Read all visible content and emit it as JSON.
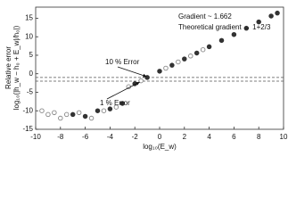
{
  "chart_data": {
    "type": "scatter",
    "x_label": "log₁₀(E_w)",
    "y_label": "Relative error",
    "y_label_2": "log₁₀(|h_w − h₀ + E_w|/h₀|)",
    "annotations": [
      "Gradient ~ 1.662",
      "Theoretical gradient → 1+2/3",
      "10 % Error",
      "1 % Error"
    ],
    "reference_lines": [
      -1,
      -2
    ],
    "xlim": [
      -10,
      10
    ],
    "xticks": [
      -10,
      -8,
      -6,
      -4,
      -2,
      0,
      2,
      4,
      6,
      8,
      10
    ],
    "ylim": [
      -15,
      18
    ],
    "yticks": [
      -15,
      -10,
      -5,
      0,
      5,
      10,
      15
    ],
    "series": [
      {
        "color": "#333333",
        "filled": true,
        "x": [
          -7,
          -6,
          -5,
          -4,
          -3,
          -2,
          -1,
          0,
          1,
          2,
          3,
          4,
          5,
          6,
          7,
          8,
          9,
          9.5
        ],
        "values": [
          -11,
          -11.5,
          -10,
          -9.5,
          -8,
          -2.7,
          -1.0,
          0.7,
          2.3,
          4.0,
          5.6,
          7.3,
          9.0,
          10.6,
          12.3,
          14.0,
          15.6,
          16.4
        ]
      },
      {
        "color": "#888888",
        "filled": false,
        "x": [
          -9.5,
          -9,
          -8.5,
          -8,
          -7.5,
          -6.5,
          -5.5,
          -4.5,
          -3.5,
          -2.5,
          -1.5,
          0.5,
          1.5,
          2.5,
          3.5
        ],
        "values": [
          -10,
          -11,
          -10.5,
          -12,
          -11,
          -10.5,
          -12,
          -10,
          -9,
          -3.5,
          -1.9,
          1.5,
          3.2,
          4.8,
          6.5
        ]
      }
    ]
  }
}
